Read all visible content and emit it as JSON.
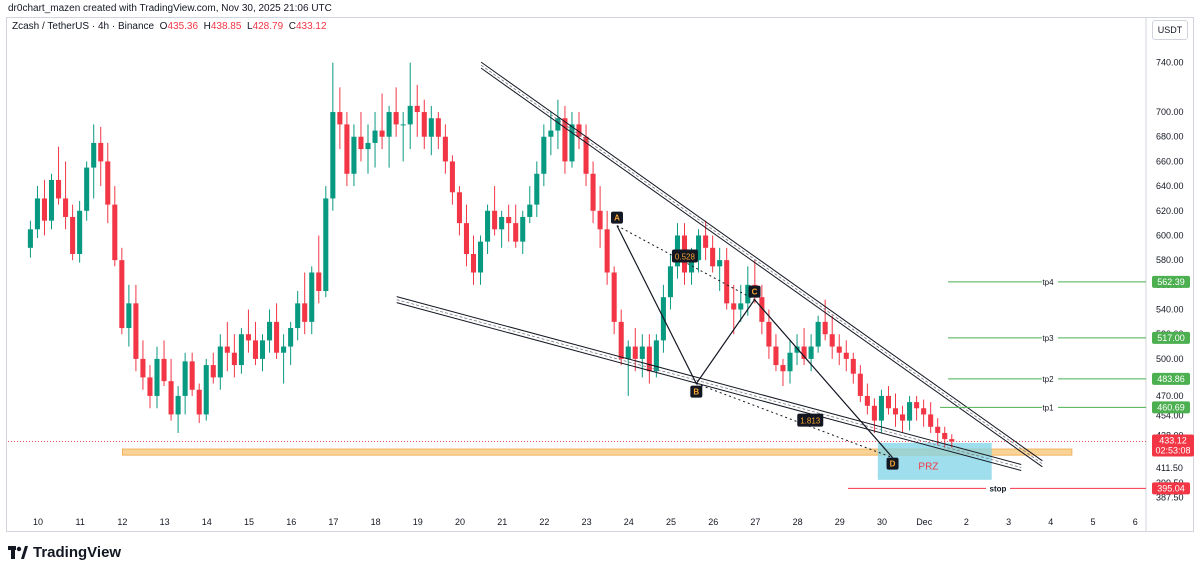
{
  "header": {
    "credit": "dr0chart_mazen created with TradingView.com, Nov 30, 2025 21:06 UTC"
  },
  "legend": {
    "symbol": "Zcash / TetherUS · 4h · Binance",
    "open_label": "O",
    "open": "435.36",
    "high_label": "H",
    "high": "438.85",
    "low_label": "L",
    "low": "428.79",
    "close_label": "C",
    "close": "433.12"
  },
  "currency_button": "USDT",
  "brand": "TradingView",
  "colors": {
    "up": "#089981",
    "down": "#f23645",
    "target": "#4caf50",
    "zone": "#f7c87a",
    "box": "#7fd3e6"
  },
  "chart_data": {
    "type": "candlestick",
    "ylim": [
      380,
      760
    ],
    "y_ticks": [
      "387.50",
      "399.50",
      "411.50",
      "438.00",
      "454.00",
      "470.00",
      "500.00",
      "520.00",
      "540.00",
      "560.00",
      "580.00",
      "600.00",
      "620.00",
      "640.00",
      "660.00",
      "680.00",
      "700.00",
      "740.00"
    ],
    "x_ticks": [
      {
        "label": "10",
        "day": 10
      },
      {
        "label": "11",
        "day": 11
      },
      {
        "label": "12",
        "day": 12
      },
      {
        "label": "13",
        "day": 13
      },
      {
        "label": "14",
        "day": 14
      },
      {
        "label": "15",
        "day": 15
      },
      {
        "label": "16",
        "day": 16
      },
      {
        "label": "17",
        "day": 17
      },
      {
        "label": "18",
        "day": 18
      },
      {
        "label": "19",
        "day": 19
      },
      {
        "label": "20",
        "day": 20
      },
      {
        "label": "21",
        "day": 21
      },
      {
        "label": "22",
        "day": 22
      },
      {
        "label": "23",
        "day": 23
      },
      {
        "label": "24",
        "day": 24
      },
      {
        "label": "25",
        "day": 25
      },
      {
        "label": "26",
        "day": 26
      },
      {
        "label": "27",
        "day": 27
      },
      {
        "label": "28",
        "day": 28
      },
      {
        "label": "29",
        "day": 29
      },
      {
        "label": "30",
        "day": 30
      },
      {
        "label": "Dec",
        "day": 31
      },
      {
        "label": "2",
        "day": 32
      },
      {
        "label": "3",
        "day": 33
      },
      {
        "label": "4",
        "day": 34
      },
      {
        "label": "5",
        "day": 35
      },
      {
        "label": "6",
        "day": 36
      }
    ],
    "candles_day_start": 9.82,
    "candles_per_day": 6,
    "candles": [
      [
        590,
        612,
        582,
        605
      ],
      [
        605,
        640,
        598,
        630
      ],
      [
        630,
        645,
        600,
        612
      ],
      [
        612,
        650,
        605,
        645
      ],
      [
        645,
        672,
        625,
        630
      ],
      [
        630,
        660,
        605,
        615
      ],
      [
        615,
        625,
        580,
        585
      ],
      [
        585,
        628,
        578,
        620
      ],
      [
        620,
        660,
        612,
        655
      ],
      [
        655,
        690,
        630,
        675
      ],
      [
        675,
        688,
        640,
        660
      ],
      [
        660,
        675,
        610,
        625
      ],
      [
        625,
        640,
        575,
        580
      ],
      [
        580,
        590,
        520,
        525
      ],
      [
        525,
        560,
        510,
        545
      ],
      [
        545,
        560,
        490,
        500
      ],
      [
        500,
        515,
        475,
        485
      ],
      [
        485,
        495,
        460,
        470
      ],
      [
        470,
        510,
        460,
        500
      ],
      [
        500,
        515,
        478,
        482
      ],
      [
        482,
        500,
        450,
        455
      ],
      [
        455,
        478,
        440,
        470
      ],
      [
        470,
        505,
        455,
        498
      ],
      [
        498,
        505,
        470,
        475
      ],
      [
        475,
        480,
        448,
        455
      ],
      [
        455,
        500,
        450,
        495
      ],
      [
        495,
        505,
        480,
        485
      ],
      [
        485,
        520,
        475,
        510
      ],
      [
        510,
        530,
        490,
        505
      ],
      [
        505,
        520,
        485,
        495
      ],
      [
        495,
        525,
        488,
        520
      ],
      [
        520,
        540,
        505,
        515
      ],
      [
        515,
        530,
        495,
        500
      ],
      [
        500,
        520,
        490,
        515
      ],
      [
        515,
        540,
        505,
        530
      ],
      [
        530,
        545,
        500,
        505
      ],
      [
        505,
        520,
        480,
        510
      ],
      [
        510,
        530,
        495,
        525
      ],
      [
        525,
        555,
        515,
        545
      ],
      [
        545,
        570,
        520,
        530
      ],
      [
        530,
        575,
        520,
        570
      ],
      [
        570,
        600,
        545,
        555
      ],
      [
        555,
        640,
        550,
        630
      ],
      [
        630,
        740,
        620,
        700
      ],
      [
        700,
        720,
        670,
        690
      ],
      [
        690,
        700,
        640,
        650
      ],
      [
        650,
        690,
        640,
        680
      ],
      [
        680,
        700,
        660,
        670
      ],
      [
        670,
        690,
        650,
        675
      ],
      [
        675,
        700,
        655,
        685
      ],
      [
        685,
        715,
        670,
        680
      ],
      [
        680,
        705,
        655,
        700
      ],
      [
        700,
        720,
        680,
        690
      ],
      [
        690,
        700,
        660,
        690
      ],
      [
        690,
        740,
        670,
        705
      ],
      [
        705,
        722,
        680,
        700
      ],
      [
        700,
        710,
        670,
        680
      ],
      [
        680,
        705,
        665,
        695
      ],
      [
        695,
        700,
        670,
        680
      ],
      [
        680,
        690,
        650,
        660
      ],
      [
        660,
        665,
        625,
        635
      ],
      [
        635,
        640,
        600,
        610
      ],
      [
        610,
        625,
        575,
        585
      ],
      [
        585,
        600,
        560,
        570
      ],
      [
        570,
        600,
        560,
        595
      ],
      [
        595,
        625,
        585,
        620
      ],
      [
        620,
        640,
        600,
        605
      ],
      [
        605,
        620,
        590,
        615
      ],
      [
        615,
        625,
        595,
        610
      ],
      [
        610,
        625,
        590,
        595
      ],
      [
        595,
        620,
        585,
        615
      ],
      [
        615,
        640,
        610,
        625
      ],
      [
        625,
        660,
        615,
        650
      ],
      [
        650,
        690,
        640,
        680
      ],
      [
        680,
        700,
        665,
        685
      ],
      [
        685,
        710,
        670,
        695
      ],
      [
        695,
        705,
        650,
        660
      ],
      [
        660,
        700,
        655,
        690
      ],
      [
        690,
        700,
        670,
        680
      ],
      [
        680,
        690,
        640,
        650
      ],
      [
        650,
        660,
        610,
        620
      ],
      [
        620,
        640,
        590,
        605
      ],
      [
        605,
        620,
        560,
        570
      ],
      [
        570,
        575,
        520,
        530
      ],
      [
        530,
        540,
        495,
        500
      ],
      [
        500,
        515,
        470,
        510
      ],
      [
        510,
        525,
        490,
        500
      ],
      [
        500,
        520,
        485,
        510
      ],
      [
        510,
        520,
        480,
        490
      ],
      [
        490,
        520,
        485,
        515
      ],
      [
        515,
        560,
        505,
        550
      ],
      [
        550,
        585,
        540,
        575
      ],
      [
        575,
        610,
        565,
        600
      ],
      [
        600,
        610,
        560,
        570
      ],
      [
        570,
        590,
        560,
        580
      ],
      [
        580,
        605,
        570,
        600
      ],
      [
        600,
        612,
        580,
        590
      ],
      [
        590,
        600,
        570,
        575
      ],
      [
        575,
        590,
        555,
        580
      ],
      [
        580,
        590,
        540,
        545
      ],
      [
        545,
        560,
        520,
        540
      ],
      [
        540,
        560,
        530,
        545
      ],
      [
        545,
        575,
        535,
        560
      ],
      [
        560,
        580,
        545,
        550
      ],
      [
        550,
        560,
        520,
        530
      ],
      [
        530,
        540,
        500,
        510
      ],
      [
        510,
        520,
        490,
        495
      ],
      [
        495,
        500,
        478,
        490
      ],
      [
        490,
        515,
        480,
        505
      ],
      [
        505,
        520,
        495,
        510
      ],
      [
        510,
        525,
        495,
        500
      ],
      [
        500,
        520,
        490,
        510
      ],
      [
        510,
        535,
        505,
        530
      ],
      [
        530,
        548,
        515,
        520
      ],
      [
        520,
        535,
        500,
        510
      ],
      [
        510,
        520,
        495,
        505
      ],
      [
        505,
        515,
        490,
        500
      ],
      [
        500,
        505,
        480,
        488
      ],
      [
        488,
        495,
        465,
        470
      ],
      [
        470,
        480,
        455,
        462
      ],
      [
        462,
        468,
        440,
        450
      ],
      [
        450,
        475,
        440,
        470
      ],
      [
        470,
        478,
        455,
        460
      ],
      [
        460,
        472,
        445,
        455
      ],
      [
        455,
        462,
        440,
        450
      ],
      [
        450,
        470,
        442,
        465
      ],
      [
        465,
        470,
        450,
        460
      ],
      [
        460,
        467,
        445,
        455
      ],
      [
        455,
        465,
        440,
        445
      ],
      [
        445,
        452,
        430,
        440
      ],
      [
        440,
        445,
        428,
        435
      ],
      [
        435,
        439,
        428,
        433
      ]
    ],
    "overlays": {
      "current_price": "433.12",
      "countdown": "02:53:08",
      "targets": [
        {
          "name": "tp4",
          "price": "562.39",
          "value": 562.39
        },
        {
          "name": "tp3",
          "price": "517.00",
          "value": 517.0
        },
        {
          "name": "tp2",
          "price": "483.86",
          "value": 483.86
        },
        {
          "name": "tp1",
          "price": "460.69",
          "value": 460.69
        }
      ],
      "stop": {
        "name": "stop",
        "price": "395.04",
        "value": 395.04
      },
      "pattern_points": [
        {
          "label": "A",
          "day": 23.72,
          "value": 608
        },
        {
          "label": "B",
          "day": 25.6,
          "value": 480
        },
        {
          "label": "C",
          "day": 26.98,
          "value": 548
        },
        {
          "label": "D",
          "day": 30.25,
          "value": 420
        }
      ],
      "ratios": [
        {
          "label": "0.528",
          "day": 25.33,
          "value": 583
        },
        {
          "label": "1.813",
          "day": 28.3,
          "value": 450
        }
      ],
      "prz_label": "PRZ",
      "support_zone": {
        "from_day": 12.0,
        "to_day": 34.5,
        "low": 422,
        "high": 427
      },
      "prz_box": {
        "from_day": 29.9,
        "to_day": 32.6,
        "low": 402,
        "high": 432
      },
      "upper_channel": {
        "from_day": 20.5,
        "from_value": 738,
        "to_day": 33.8,
        "to_value": 415
      },
      "lower_channel": {
        "from_day": 18.5,
        "from_value": 548,
        "to_day": 33.3,
        "to_value": 412
      }
    }
  }
}
